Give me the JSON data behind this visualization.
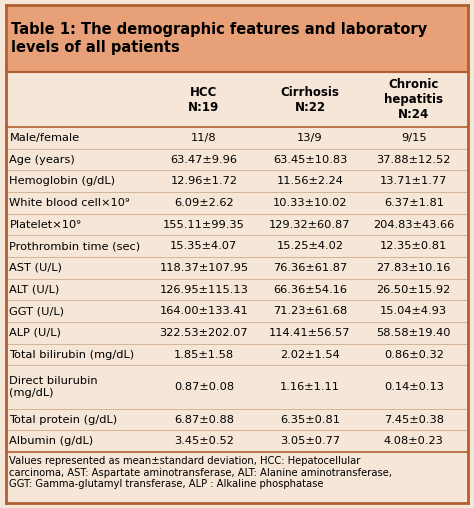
{
  "title": "Table 1: The demographic features and laboratory\nlevels of all patients",
  "title_bg": "#E8A078",
  "table_bg": "#F5E6D8",
  "col_headers": [
    "",
    "HCC\nN:19",
    "Cirrhosis\nN:22",
    "Chronic\nhepatitis\nN:24"
  ],
  "rows": [
    [
      "Male/female",
      "11/8",
      "13/9",
      "9/15"
    ],
    [
      "Age (years)",
      "63.47±9.96",
      "63.45±10.83",
      "37.88±12.52"
    ],
    [
      "Hemoglobin (g/dL)",
      "12.96±1.72",
      "11.56±2.24",
      "13.71±1.77"
    ],
    [
      "White blood cell×10⁹",
      "6.09±2.62",
      "10.33±10.02",
      "6.37±1.81"
    ],
    [
      "Platelet×10⁹",
      "155.11±99.35",
      "129.32±60.87",
      "204.83±43.66"
    ],
    [
      "Prothrombin time (sec)",
      "15.35±4.07",
      "15.25±4.02",
      "12.35±0.81"
    ],
    [
      "AST (U/L)",
      "118.37±107.95",
      "76.36±61.87",
      "27.83±10.16"
    ],
    [
      "ALT (U/L)",
      "126.95±115.13",
      "66.36±54.16",
      "26.50±15.92"
    ],
    [
      "GGT (U/L)",
      "164.00±133.41",
      "71.23±61.68",
      "15.04±4.93"
    ],
    [
      "ALP (U/L)",
      "322.53±202.07",
      "114.41±56.57",
      "58.58±19.40"
    ],
    [
      "Total bilirubin (mg/dL)",
      "1.85±1.58",
      "2.02±1.54",
      "0.86±0.32"
    ],
    [
      "Direct bilurubin\n(mg/dL)",
      "0.87±0.08",
      "1.16±1.11",
      "0.14±0.13"
    ],
    [
      "Total protein (g/dL)",
      "6.87±0.88",
      "6.35±0.81",
      "7.45±0.38"
    ],
    [
      "Albumin (g/dL)",
      "3.45±0.52",
      "3.05±0.77",
      "4.08±0.23"
    ]
  ],
  "footnote": "Values represented as mean±standard deviation, HCC: Hepatocellular\ncarcinoma, AST: Aspartate aminotransferase, ALT: Alanine aminotransferase,\nGGT: Gamma-glutamyl transferase, ALP : Alkaline phosphatase",
  "title_fontsize": 10.5,
  "header_fontsize": 8.5,
  "body_fontsize": 8.2,
  "footnote_fontsize": 7.2,
  "border_color": "#B06030",
  "divider_color": "#C8A080"
}
